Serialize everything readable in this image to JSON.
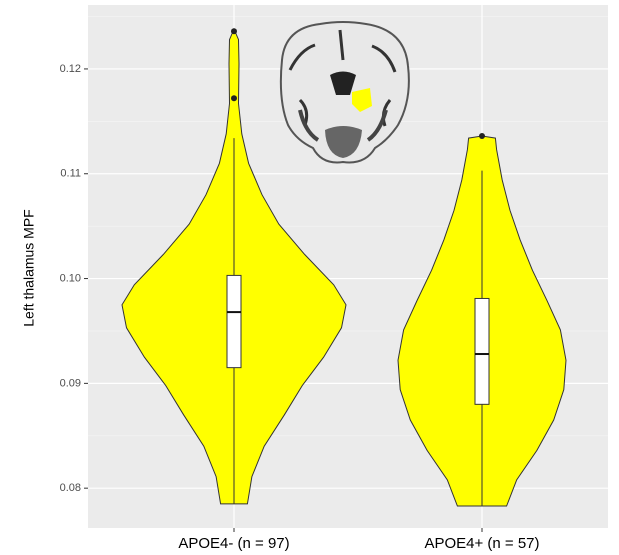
{
  "chart_data": {
    "type": "violin",
    "y_label": "Left thalamus MPF",
    "categories": [
      "APOE4- (n = 97)",
      "APOE4+ (n = 57)"
    ],
    "ylim": [
      0.0762,
      0.1261
    ],
    "yticks": [
      0.08,
      0.09,
      {
        "value": 0.1,
        "label": "0.10"
      },
      0.11,
      0.12
    ],
    "yminor": [
      0.085,
      0.095,
      0.105,
      0.115,
      0.125
    ],
    "grid": true,
    "color": "#ffff00",
    "box_color": "#ffffff",
    "groups": [
      {
        "violin": {
          "y": [
            0.0785,
            0.0811,
            0.084,
            0.087,
            0.0898,
            0.0925,
            0.0953,
            0.0975,
            0.0994,
            0.1023,
            0.1052,
            0.108,
            0.111,
            0.1138,
            0.1167,
            0.1205,
            0.1228,
            0.1238
          ],
          "density": [
            0.12,
            0.16,
            0.27,
            0.45,
            0.61,
            0.8,
            0.96,
            1.0,
            0.89,
            0.63,
            0.4,
            0.25,
            0.13,
            0.07,
            0.04,
            0.045,
            0.04,
            0
          ]
        },
        "box": {
          "min": 0.0785,
          "q1": 0.0915,
          "median": 0.0968,
          "q3": 0.1003,
          "max": 0.1134
        },
        "outliers": [
          0.1236,
          0.1172
        ]
      },
      {
        "violin": {
          "y": [
            0.0783,
            0.0808,
            0.0836,
            0.0865,
            0.0894,
            0.0922,
            0.0951,
            0.0979,
            0.1008,
            0.1037,
            0.1065,
            0.1094,
            0.1123,
            0.1134,
            0.1136
          ],
          "density": [
            0.22,
            0.31,
            0.49,
            0.64,
            0.73,
            0.75,
            0.7,
            0.58,
            0.45,
            0.34,
            0.25,
            0.18,
            0.13,
            0.12,
            0
          ]
        },
        "box": {
          "min": 0.0783,
          "q1": 0.088,
          "median": 0.0928,
          "q3": 0.0981,
          "max": 0.1103
        },
        "outliers": [
          0.1136
        ]
      }
    ]
  }
}
